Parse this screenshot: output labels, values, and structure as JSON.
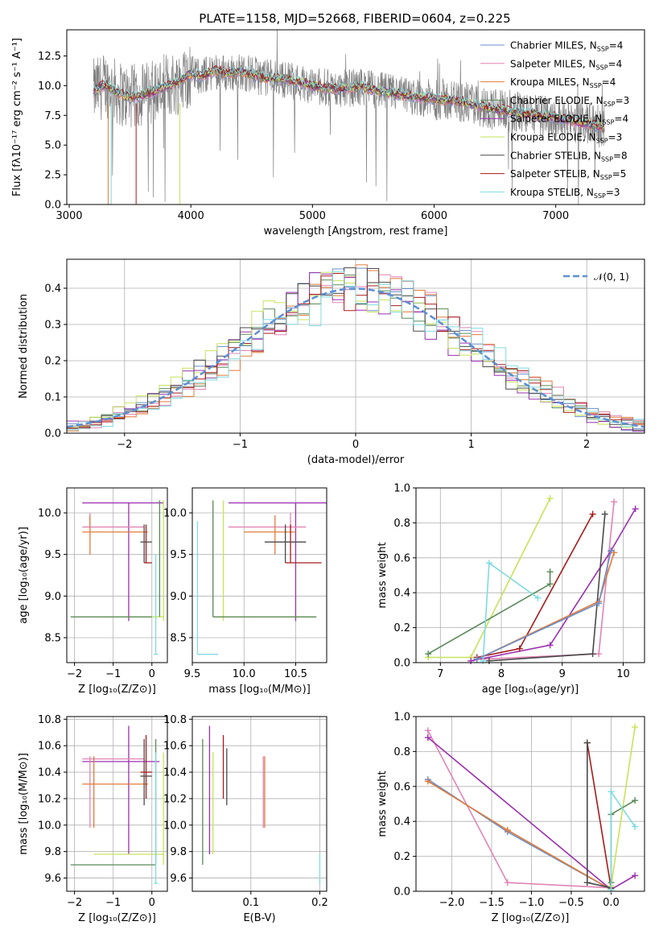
{
  "chart_data": [
    {
      "id": "spectrum",
      "type": "line",
      "title": "PLATE=1158, MJD=52668, FIBERID=0604, z=0.225",
      "xlabel": "wavelength [Angstrom, rest frame]",
      "ylabel": "Flux [fλ10⁻¹⁷ erg cm⁻² s⁻¹ A⁻¹]",
      "xlim": [
        2980,
        7730
      ],
      "ylim": [
        0,
        14.7
      ],
      "xticks": [
        "3000",
        "4000",
        "5000",
        "6000",
        "7000"
      ],
      "yticks": [
        "0.0",
        "2.5",
        "5.0",
        "7.5",
        "10.0",
        "12.5"
      ],
      "grid": false,
      "legend_position": "top-right",
      "legend": [
        {
          "label": "Chabrier MILES, N",
          "sub": "SSP",
          "tail": "=4",
          "color": "#6a8fc9"
        },
        {
          "label": "Salpeter MILES, N",
          "sub": "SSP",
          "tail": "=4",
          "color": "#e184b6"
        },
        {
          "label": "Kroupa MILES, N",
          "sub": "SSP",
          "tail": "=4",
          "color": "#e07b3a"
        },
        {
          "label": "Chabrier ELODIE, N",
          "sub": "SSP",
          "tail": "=3",
          "color": "#5a8a5a"
        },
        {
          "label": "Salpeter ELODIE, N",
          "sub": "SSP",
          "tail": "=4",
          "color": "#9b30b0"
        },
        {
          "label": "Kroupa ELODIE, N",
          "sub": "SSP",
          "tail": "=3",
          "color": "#c6e35a"
        },
        {
          "label": "Chabrier STELIB, N",
          "sub": "SSP",
          "tail": "=8",
          "color": "#4a4a4a"
        },
        {
          "label": "Salpeter STELIB, N",
          "sub": "SSP",
          "tail": "=5",
          "color": "#a81a1a"
        },
        {
          "label": "Kroupa STELIB, N",
          "sub": "SSP",
          "tail": "=3",
          "color": "#7fdbe0"
        }
      ],
      "continuum": {
        "x": [
          3200,
          3300,
          3400,
          3500,
          3600,
          3700,
          3800,
          3900,
          4000,
          4100,
          4200,
          4300,
          4400,
          4600,
          4800,
          5000,
          5200,
          5400,
          5600,
          5800,
          6000,
          6200,
          6400,
          6600,
          6800,
          7000,
          7200,
          7400
        ],
        "y": [
          9.5,
          10.1,
          9.4,
          9.0,
          9.2,
          9.5,
          10.0,
          10.3,
          11.0,
          10.8,
          11.3,
          11.0,
          11.2,
          10.7,
          10.5,
          10.0,
          9.7,
          9.9,
          9.5,
          9.1,
          8.9,
          8.7,
          8.2,
          7.9,
          7.6,
          7.3,
          6.9,
          6.5
        ]
      }
    },
    {
      "id": "residuals",
      "type": "line",
      "xlabel": "(data-model)/error",
      "ylabel": "Normed distribution",
      "xlim": [
        -2.5,
        2.5
      ],
      "ylim": [
        0,
        0.48
      ],
      "xticks": [
        "−2",
        "−1",
        "0",
        "1",
        "2"
      ],
      "yticks": [
        "0.0",
        "0.1",
        "0.2",
        "0.3",
        "0.4"
      ],
      "grid": true,
      "legend_position": "top-right",
      "gaussian_label": "𝒩(0, 1)",
      "gaussian_color": "#5b8fd6"
    },
    {
      "id": "age_vs_Z",
      "type": "scatter",
      "xlabel": "Z [log₁₀(Z/Z⊙)]",
      "ylabel": "age  [log₁₀(age/yr)]",
      "xlim": [
        -2.2,
        0.4
      ],
      "ylim": [
        8.2,
        10.3
      ],
      "xticks": [
        "−2",
        "−1",
        "0"
      ],
      "yticks": [
        "8.5",
        "9.0",
        "9.5",
        "10.0"
      ],
      "grid": true
    },
    {
      "id": "age_vs_mass",
      "type": "scatter",
      "xlabel": "mass [log₁₀(M/M⊙)]",
      "xlim": [
        9.5,
        10.8
      ],
      "ylim": [
        8.2,
        10.3
      ],
      "xticks": [
        "9.5",
        "10.0",
        "10.5"
      ],
      "yticks": [
        "8.5",
        "9.0",
        "9.5",
        "10.0"
      ],
      "grid": true
    },
    {
      "id": "massweight_vs_age",
      "type": "line",
      "xlabel": "age  [log₁₀(age/yr)]",
      "ylabel": "mass weight",
      "xlim": [
        6.6,
        10.35
      ],
      "ylim": [
        0,
        1.0
      ],
      "xticks": [
        "7",
        "8",
        "9",
        "10"
      ],
      "yticks": [
        "0.0",
        "0.2",
        "0.4",
        "0.6",
        "0.8",
        "1.0"
      ],
      "grid": true,
      "series": [
        {
          "color": "#c6e35a",
          "x": [
            6.8,
            7.5,
            8.8
          ],
          "y": [
            0.03,
            0.03,
            0.94
          ]
        },
        {
          "color": "#e184b6",
          "x": [
            7.7,
            9.6,
            9.85
          ],
          "y": [
            0.02,
            0.05,
            0.92
          ]
        },
        {
          "color": "#9b30b0",
          "x": [
            7.5,
            8.8,
            9.8,
            10.2
          ],
          "y": [
            0.01,
            0.1,
            0.64,
            0.88
          ]
        },
        {
          "color": "#a81a1a",
          "x": [
            7.6,
            8.3,
            9.5
          ],
          "y": [
            0.03,
            0.08,
            0.85
          ]
        },
        {
          "color": "#4a4a4a",
          "x": [
            7.8,
            9.5,
            9.7
          ],
          "y": [
            0.01,
            0.05,
            0.85
          ]
        },
        {
          "color": "#5a8a5a",
          "x": [
            6.8,
            8.8,
            8.8
          ],
          "y": [
            0.05,
            0.45,
            0.52
          ]
        },
        {
          "color": "#7fdbe0",
          "x": [
            7.7,
            7.8,
            8.6
          ],
          "y": [
            0.01,
            0.57,
            0.37
          ]
        },
        {
          "color": "#e07b3a",
          "x": [
            7.6,
            9.6,
            9.85
          ],
          "y": [
            0.02,
            0.35,
            0.63
          ]
        },
        {
          "color": "#6a8fc9",
          "x": [
            7.6,
            9.6,
            9.8
          ],
          "y": [
            0.02,
            0.34,
            0.64
          ]
        }
      ]
    },
    {
      "id": "mass_vs_Z",
      "type": "scatter",
      "xlabel": "Z [log₁₀(Z/Z⊙)]",
      "ylabel": "mass [log₁₀(M/M⊙)]",
      "xlim": [
        -2.2,
        0.4
      ],
      "ylim": [
        9.5,
        10.82
      ],
      "xticks": [
        "−2",
        "−1",
        "0"
      ],
      "yticks": [
        "9.6",
        "9.8",
        "10.0",
        "10.2",
        "10.4",
        "10.6",
        "10.8"
      ],
      "grid": true
    },
    {
      "id": "mass_vs_ebv",
      "type": "scatter",
      "xlabel": "E(B-V)",
      "xlim": [
        0.015,
        0.21
      ],
      "ylim": [
        9.5,
        10.82
      ],
      "xticks": [
        "0.1",
        "0.2"
      ],
      "yticks": [
        "9.6",
        "9.8",
        "10.0",
        "10.2",
        "10.4",
        "10.6",
        "10.8"
      ],
      "grid": true
    },
    {
      "id": "massweight_vs_Z",
      "type": "line",
      "xlabel": "Z [log₁₀(Z/Z⊙)]",
      "ylabel": "mass weight",
      "xlim": [
        -2.45,
        0.42
      ],
      "ylim": [
        0,
        1.0
      ],
      "xticks": [
        "−2.0",
        "−1.5",
        "−1.0",
        "−0.5",
        "0.0"
      ],
      "yticks": [
        "0.0",
        "0.2",
        "0.4",
        "0.6",
        "0.8",
        "1.0"
      ],
      "grid": true,
      "series": [
        {
          "color": "#e184b6",
          "x": [
            -2.3,
            -1.3,
            0.0
          ],
          "y": [
            0.92,
            0.05,
            0.02
          ]
        },
        {
          "color": "#9b30b0",
          "x": [
            -2.3,
            0.0,
            0.3
          ],
          "y": [
            0.88,
            0.01,
            0.09
          ]
        },
        {
          "color": "#6a8fc9",
          "x": [
            -2.3,
            -1.3,
            0.0
          ],
          "y": [
            0.64,
            0.34,
            0.01
          ]
        },
        {
          "color": "#e07b3a",
          "x": [
            -2.3,
            -1.3,
            0.0
          ],
          "y": [
            0.63,
            0.35,
            0.01
          ]
        },
        {
          "color": "#a81a1a",
          "x": [
            -0.3,
            0.0
          ],
          "y": [
            0.85,
            0.02
          ]
        },
        {
          "color": "#4a4a4a",
          "x": [
            -0.3,
            -0.3,
            0.0
          ],
          "y": [
            0.85,
            0.05,
            0.02
          ]
        },
        {
          "color": "#c6e35a",
          "x": [
            0.0,
            0.3
          ],
          "y": [
            0.03,
            0.94
          ]
        },
        {
          "color": "#5a8a5a",
          "x": [
            0.0,
            0.0,
            0.3
          ],
          "y": [
            0.05,
            0.44,
            0.52
          ]
        },
        {
          "color": "#7fdbe0",
          "x": [
            0.0,
            0.0,
            0.3
          ],
          "y": [
            0.01,
            0.57,
            0.37
          ]
        }
      ]
    }
  ]
}
